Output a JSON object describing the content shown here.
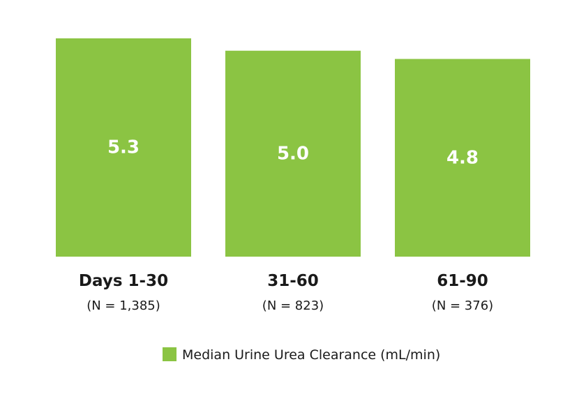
{
  "chart_data": {
    "type": "bar",
    "categories": [
      "Days 1-30",
      "31-60",
      "61-90"
    ],
    "sample_sizes": [
      "(N = 1,385)",
      "(N = 823)",
      "(N = 376)"
    ],
    "series": [
      {
        "name": "Median Urine Urea Clearance (mL/min)",
        "values": [
          5.3,
          5.0,
          4.8
        ],
        "value_labels": [
          "5.3",
          "5.0",
          "4.8"
        ],
        "color": "#8bc443"
      }
    ],
    "ylim": [
      0,
      5.3
    ],
    "grid": false,
    "legend_position": "bottom-right"
  }
}
